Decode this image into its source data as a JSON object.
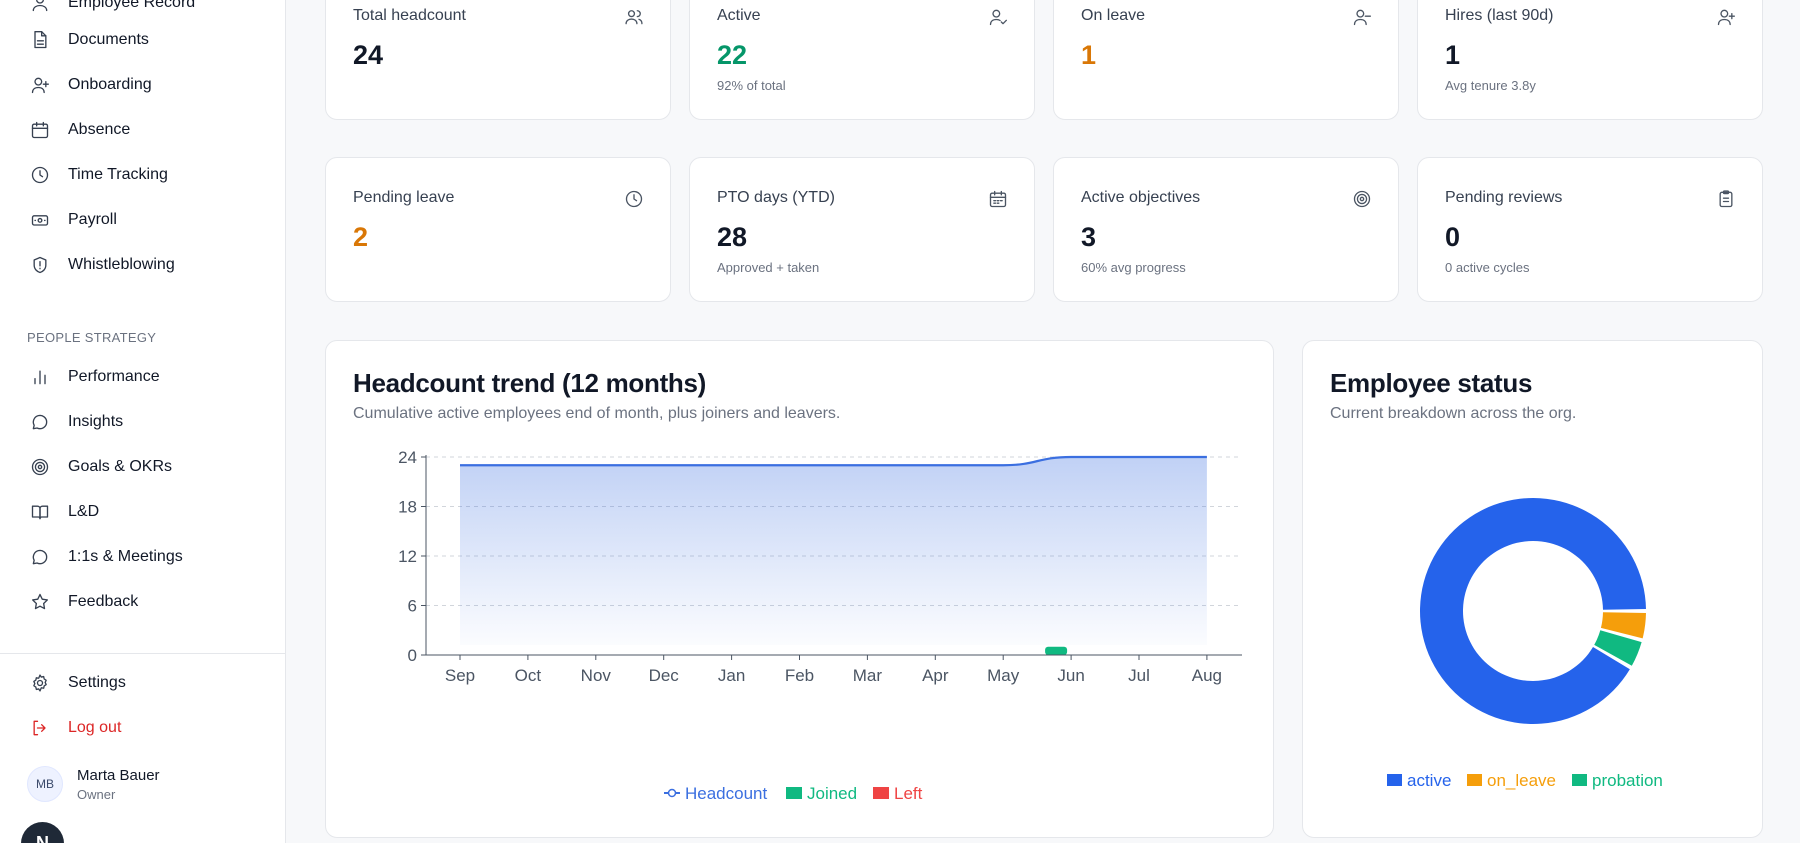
{
  "sidebar": {
    "items_top": [
      {
        "label": "Employee Record",
        "icon": "user-icon"
      },
      {
        "label": "Documents",
        "icon": "document-icon"
      },
      {
        "label": "Onboarding",
        "icon": "user-plus-icon"
      },
      {
        "label": "Absence",
        "icon": "calendar-icon"
      },
      {
        "label": "Time Tracking",
        "icon": "clock-icon"
      },
      {
        "label": "Payroll",
        "icon": "banknote-icon"
      },
      {
        "label": "Whistleblowing",
        "icon": "shield-icon"
      }
    ],
    "section_label": "PEOPLE STRATEGY",
    "items_strategy": [
      {
        "label": "Performance",
        "icon": "bar-chart-icon"
      },
      {
        "label": "Insights",
        "icon": "chat-bubble-icon"
      },
      {
        "label": "Goals & OKRs",
        "icon": "target-icon"
      },
      {
        "label": "L&D",
        "icon": "book-icon"
      },
      {
        "label": "1:1s & Meetings",
        "icon": "chat-bubble-icon"
      },
      {
        "label": "Feedback",
        "icon": "star-icon"
      }
    ],
    "settings_label": "Settings",
    "logout_label": "Log out",
    "user": {
      "initials": "MB",
      "name": "Marta Bauer",
      "role": "Owner"
    },
    "fab_label": "N"
  },
  "stats": [
    {
      "label": "Total headcount",
      "value": "24",
      "sub": "",
      "icon": "users-icon"
    },
    {
      "label": "Active",
      "value": "22",
      "sub": "92% of total",
      "icon": "user-check-icon"
    },
    {
      "label": "On leave",
      "value": "1",
      "sub": "",
      "icon": "user-minus-icon"
    },
    {
      "label": "Hires (last 90d)",
      "value": "1",
      "sub": "Avg tenure 3.8y",
      "icon": "user-plus-icon"
    },
    {
      "label": "Pending leave",
      "value": "2",
      "sub": "",
      "icon": "clock-icon"
    },
    {
      "label": "PTO days (YTD)",
      "value": "28",
      "sub": "Approved + taken",
      "icon": "calendar-icon"
    },
    {
      "label": "Active objectives",
      "value": "3",
      "sub": "60% avg progress",
      "icon": "target-icon"
    },
    {
      "label": "Pending reviews",
      "value": "0",
      "sub": "0 active cycles",
      "icon": "clipboard-icon"
    }
  ],
  "trend_panel": {
    "title": "Headcount trend (12 months)",
    "subtitle": "Cumulative active employees end of month, plus joiners and leavers."
  },
  "status_panel": {
    "title": "Employee status",
    "subtitle": "Current breakdown across the org."
  },
  "colors": {
    "headcount": "#3b6fe0",
    "joined": "#10b981",
    "left": "#ef4444",
    "active": "#2563eb",
    "on_leave": "#f59e0b",
    "probation": "#10b981"
  },
  "chart_data": [
    {
      "type": "area",
      "title": "Headcount trend (12 months)",
      "categories": [
        "Sep",
        "Oct",
        "Nov",
        "Dec",
        "Jan",
        "Feb",
        "Mar",
        "Apr",
        "May",
        "Jun",
        "Jul",
        "Aug"
      ],
      "ylim": [
        0,
        24
      ],
      "yticks": [
        "0",
        "6",
        "12",
        "18",
        "24"
      ],
      "grid": true,
      "legend": "bottom",
      "series": [
        {
          "name": "Headcount",
          "type": "line",
          "values": [
            23,
            23,
            23,
            23,
            23,
            23,
            23,
            23,
            23,
            24,
            24,
            24
          ]
        },
        {
          "name": "Joined",
          "type": "bar",
          "values": [
            0,
            0,
            0,
            0,
            0,
            0,
            0,
            0,
            0,
            1,
            0,
            0
          ]
        },
        {
          "name": "Left",
          "type": "bar",
          "values": [
            0,
            0,
            0,
            0,
            0,
            0,
            0,
            0,
            0,
            0,
            0,
            0
          ]
        }
      ]
    },
    {
      "type": "pie",
      "title": "Employee status",
      "legend": "bottom",
      "slices": [
        {
          "name": "active",
          "value": 22
        },
        {
          "name": "on_leave",
          "value": 1
        },
        {
          "name": "probation",
          "value": 1
        }
      ]
    }
  ]
}
